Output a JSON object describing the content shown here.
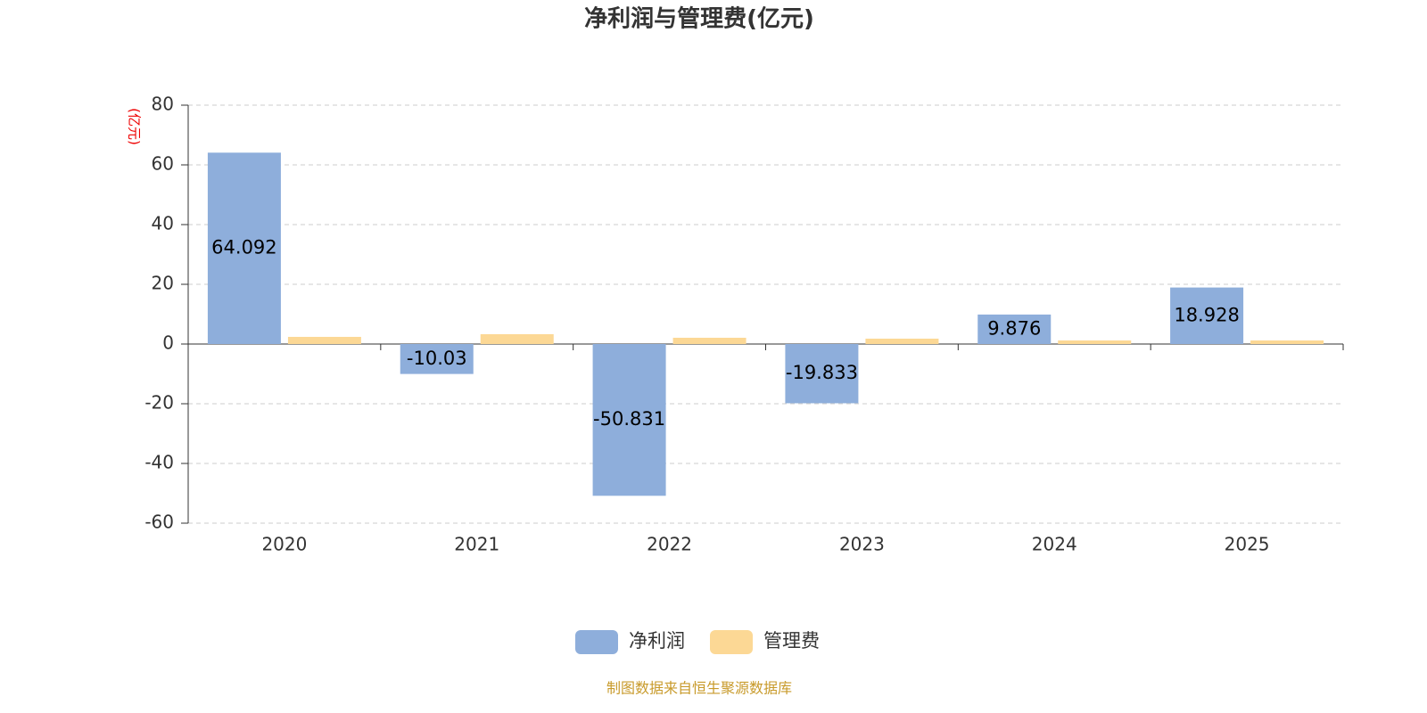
{
  "chart_data": {
    "type": "bar",
    "title": "净利润与管理费(亿元)",
    "y_label": "(亿元)",
    "categories": [
      "2020",
      "2021",
      "2022",
      "2023",
      "2024",
      "2025"
    ],
    "series": [
      {
        "name": "净利润",
        "color": "#8eaedb",
        "values": [
          64.092,
          -10.03,
          -50.831,
          -19.833,
          9.876,
          18.928
        ],
        "show_labels": true
      },
      {
        "name": "管理费",
        "color": "#fcd895",
        "values": [
          2.4,
          3.3,
          2.1,
          1.8,
          1.2,
          1.2
        ],
        "show_labels": false
      }
    ],
    "ylim": [
      -60,
      80
    ],
    "yticks": [
      -60,
      -40,
      -20,
      0,
      20,
      40,
      60,
      80
    ],
    "grid": true,
    "legend": "bottom",
    "source": "制图数据来自恒生聚源数据库"
  }
}
